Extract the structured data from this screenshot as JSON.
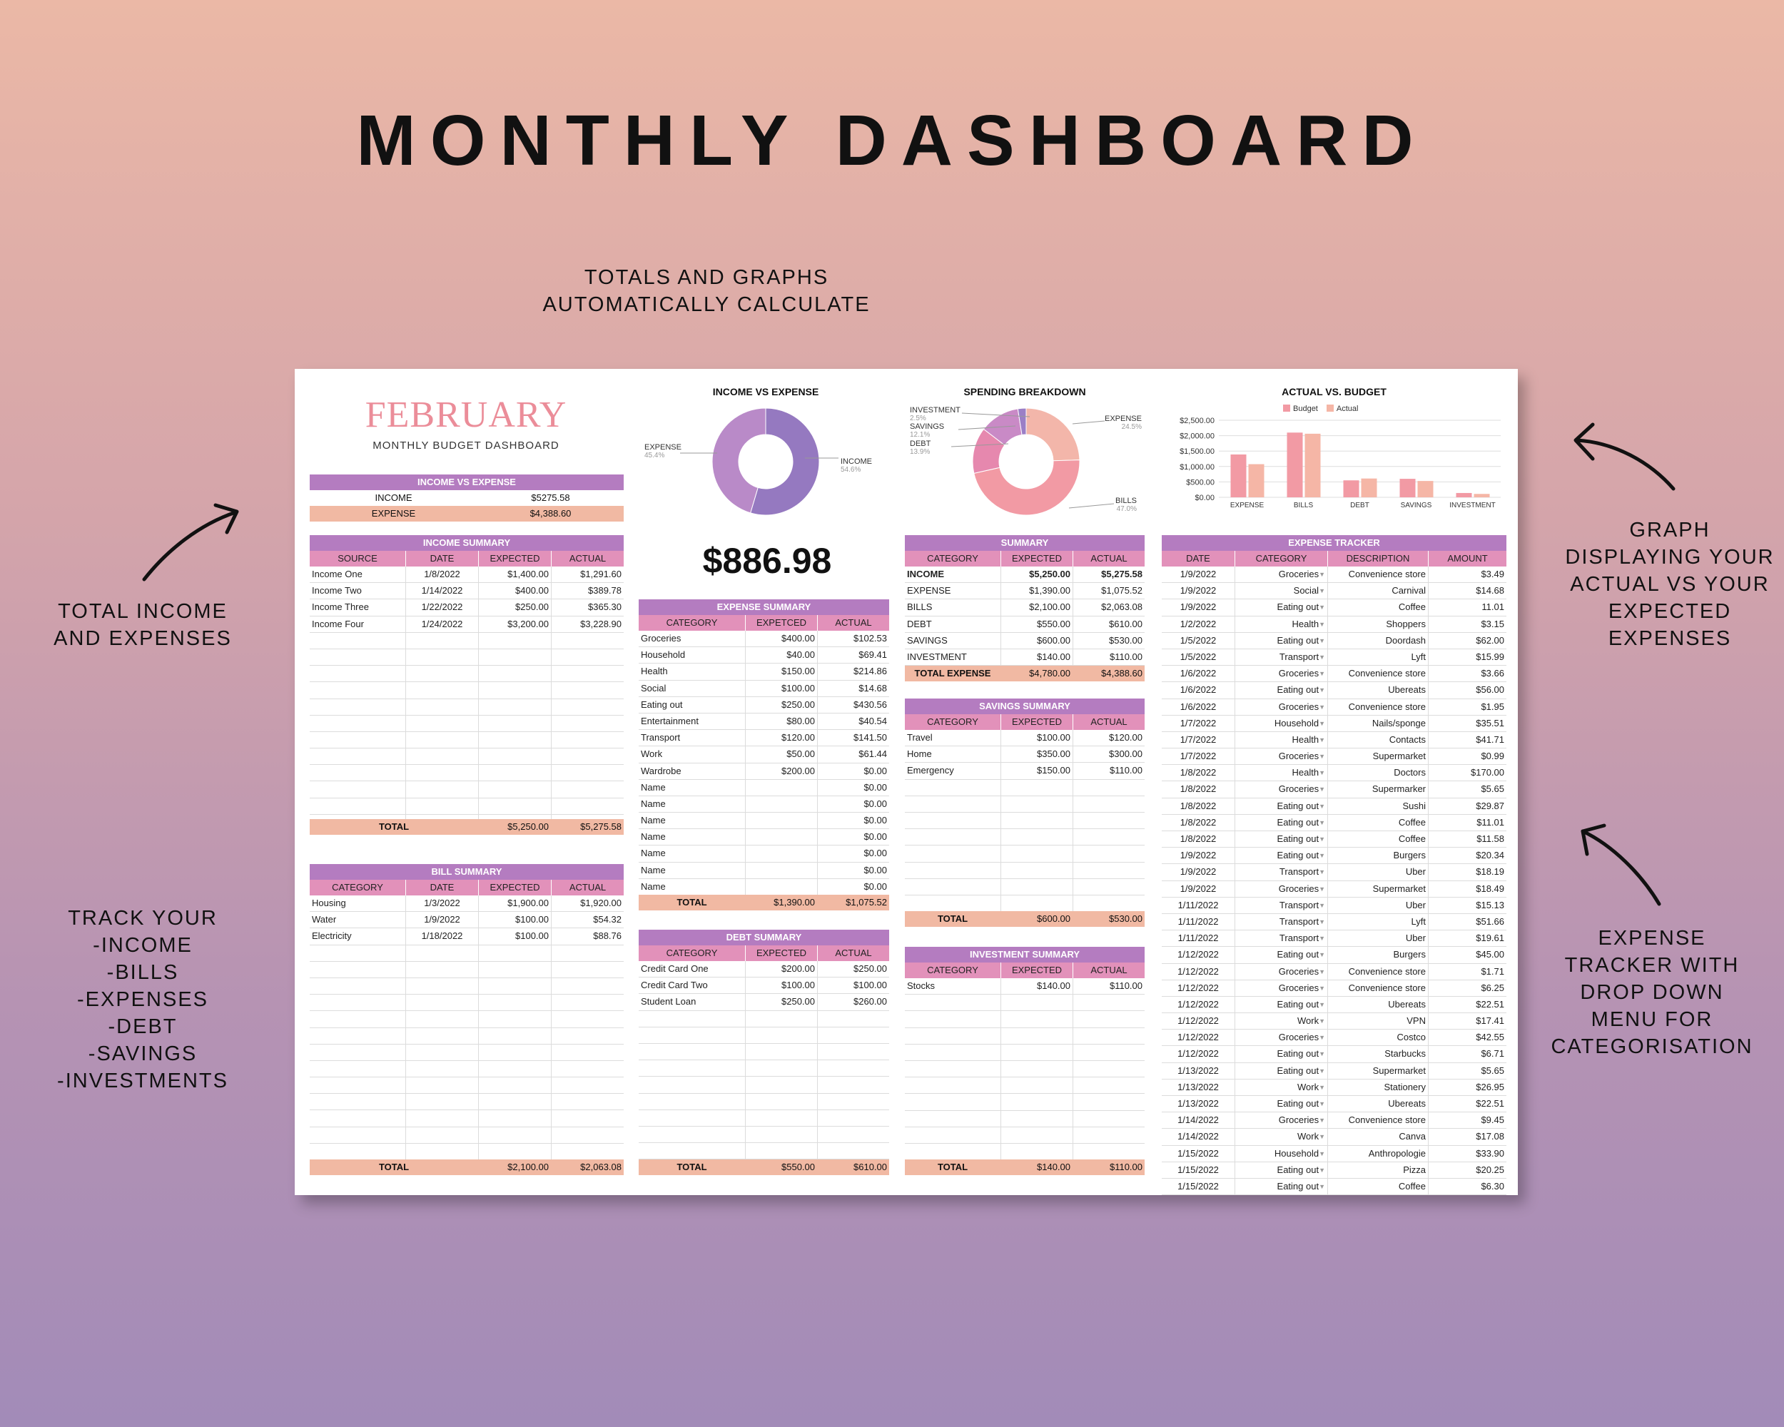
{
  "page": {
    "title": "MONTHLY DASHBOARD",
    "tagline": [
      "TOTALS AND GRAPHS",
      "AUTOMATICALLY CALCULATE"
    ],
    "left_callout_1": [
      "TOTAL INCOME",
      "AND EXPENSES"
    ],
    "left_callout_2": [
      "TRACK YOUR",
      "-INCOME",
      "-BILLS",
      "-EXPENSES",
      "-DEBT",
      "-SAVINGS",
      "-INVESTMENTS"
    ],
    "right_callout_1": [
      "GRAPH",
      "DISPLAYING YOUR",
      "ACTUAL VS YOUR",
      "EXPECTED",
      "EXPENSES"
    ],
    "right_callout_2": [
      "EXPENSE",
      "TRACKER WITH",
      "DROP DOWN",
      "MENU FOR",
      "CATEGORISATION"
    ]
  },
  "colors": {
    "header": "#b47cc0",
    "colheader": "#e291ba",
    "total": "#f1b9a3",
    "month": "#eb8d99"
  },
  "sheet": {
    "month": "FEBRUARY",
    "subtitle": "MONTHLY BUDGET DASHBOARD",
    "income_vs_expense": {
      "title": "INCOME VS EXPENSE",
      "rows": [
        {
          "label": "INCOME",
          "value": "$5275.58"
        },
        {
          "label": "EXPENSE",
          "value": "$4,388.60"
        }
      ]
    },
    "balance": "$886.98",
    "charts": {
      "income_expense_title": "INCOME VS EXPENSE",
      "income_expense_labels": {
        "expense": "EXPENSE",
        "expense_pct": "45.4%",
        "income": "INCOME",
        "income_pct": "54.6%"
      },
      "spending_title": "SPENDING BREAKDOWN",
      "spending_labels": {
        "investment": "INVESTMENT",
        "investment_pct": "2.5%",
        "savings": "SAVINGS",
        "savings_pct": "12.1%",
        "debt": "DEBT",
        "debt_pct": "13.9%",
        "expense": "EXPENSE",
        "expense_pct": "24.5%",
        "bills": "BILLS",
        "bills_pct": "47.0%"
      },
      "budget_title": "ACTUAL VS. BUDGET",
      "legend_budget": "Budget",
      "legend_actual": "Actual",
      "y_ticks": [
        "$2,500.00",
        "$2,000.00",
        "$1,500.00",
        "$1,000.00",
        "$500.00",
        "$0.00"
      ]
    },
    "income_summary": {
      "title": "INCOME SUMMARY",
      "columns": [
        "SOURCE",
        "DATE",
        "EXPECTED",
        "ACTUAL"
      ],
      "rows": [
        [
          "Income One",
          "1/8/2022",
          "$1,400.00",
          "$1,291.60"
        ],
        [
          "Income Two",
          "1/14/2022",
          "$400.00",
          "$389.78"
        ],
        [
          "Income Three",
          "1/22/2022",
          "$250.00",
          "$365.30"
        ],
        [
          "Income Four",
          "1/24/2022",
          "$3,200.00",
          "$3,228.90"
        ]
      ],
      "total": {
        "label": "TOTAL",
        "expected": "$5,250.00",
        "actual": "$5,275.58"
      }
    },
    "bill_summary": {
      "title": "BILL SUMMARY",
      "columns": [
        "CATEGORY",
        "DATE",
        "EXPECTED",
        "ACTUAL"
      ],
      "rows": [
        [
          "Housing",
          "1/3/2022",
          "$1,900.00",
          "$1,920.00"
        ],
        [
          "Water",
          "1/9/2022",
          "$100.00",
          "$54.32"
        ],
        [
          "Electricity",
          "1/18/2022",
          "$100.00",
          "$88.76"
        ]
      ],
      "total": {
        "label": "TOTAL",
        "expected": "$2,100.00",
        "actual": "$2,063.08"
      }
    },
    "expense_summary": {
      "title": "EXPENSE SUMMARY",
      "columns": [
        "CATEGORY",
        "EXPETCED",
        "ACTUAL"
      ],
      "rows": [
        [
          "Groceries",
          "$400.00",
          "$102.53"
        ],
        [
          "Household",
          "$40.00",
          "$69.41"
        ],
        [
          "Health",
          "$150.00",
          "$214.86"
        ],
        [
          "Social",
          "$100.00",
          "$14.68"
        ],
        [
          "Eating out",
          "$250.00",
          "$430.56"
        ],
        [
          "Entertainment",
          "$80.00",
          "$40.54"
        ],
        [
          "Transport",
          "$120.00",
          "$141.50"
        ],
        [
          "Work",
          "$50.00",
          "$61.44"
        ],
        [
          "Wardrobe",
          "$200.00",
          "$0.00"
        ],
        [
          "Name",
          "",
          "$0.00"
        ],
        [
          "Name",
          "",
          "$0.00"
        ],
        [
          "Name",
          "",
          "$0.00"
        ],
        [
          "Name",
          "",
          "$0.00"
        ],
        [
          "Name",
          "",
          "$0.00"
        ],
        [
          "Name",
          "",
          "$0.00"
        ],
        [
          "Name",
          "",
          "$0.00"
        ]
      ],
      "total": {
        "label": "TOTAL",
        "expected": "$1,390.00",
        "actual": "$1,075.52"
      }
    },
    "debt_summary": {
      "title": "DEBT SUMMARY",
      "columns": [
        "CATEGORY",
        "EXPECTED",
        "ACTUAL"
      ],
      "rows": [
        [
          "Credit Card One",
          "$200.00",
          "$250.00"
        ],
        [
          "Credit Card Two",
          "$100.00",
          "$100.00"
        ],
        [
          "Student Loan",
          "$250.00",
          "$260.00"
        ]
      ],
      "total": {
        "label": "TOTAL",
        "expected": "$550.00",
        "actual": "$610.00"
      }
    },
    "summary": {
      "title": "SUMMARY",
      "columns": [
        "CATEGORY",
        "EXPECTED",
        "ACTUAL"
      ],
      "rows": [
        [
          "INCOME",
          "$5,250.00",
          "$5,275.58"
        ],
        [
          "EXPENSE",
          "$1,390.00",
          "$1,075.52"
        ],
        [
          "BILLS",
          "$2,100.00",
          "$2,063.08"
        ],
        [
          "DEBT",
          "$550.00",
          "$610.00"
        ],
        [
          "SAVINGS",
          "$600.00",
          "$530.00"
        ],
        [
          "INVESTMENT",
          "$140.00",
          "$110.00"
        ]
      ],
      "total": {
        "label": "TOTAL EXPENSE",
        "expected": "$4,780.00",
        "actual": "$4,388.60"
      }
    },
    "savings_summary": {
      "title": "SAVINGS SUMMARY",
      "columns": [
        "CATEGORY",
        "EXPECTED",
        "ACTUAL"
      ],
      "rows": [
        [
          "Travel",
          "$100.00",
          "$120.00"
        ],
        [
          "Home",
          "$350.00",
          "$300.00"
        ],
        [
          "Emergency",
          "$150.00",
          "$110.00"
        ]
      ],
      "total": {
        "label": "TOTAL",
        "expected": "$600.00",
        "actual": "$530.00"
      }
    },
    "investment_summary": {
      "title": "INVESTMENT SUMMARY",
      "columns": [
        "CATEGORY",
        "EXPECTED",
        "ACTUAL"
      ],
      "rows": [
        [
          "Stocks",
          "$140.00",
          "$110.00"
        ]
      ],
      "total": {
        "label": "TOTAL",
        "expected": "$140.00",
        "actual": "$110.00"
      }
    },
    "expense_tracker": {
      "title": "EXPENSE TRACKER",
      "columns": [
        "DATE",
        "CATEGORY",
        "DESCRIPTION",
        "AMOUNT"
      ],
      "rows": [
        [
          "1/9/2022",
          "Groceries",
          "Convenience store",
          "$3.49"
        ],
        [
          "1/9/2022",
          "Social",
          "Carnival",
          "$14.68"
        ],
        [
          "1/9/2022",
          "Eating out",
          "Coffee",
          "11.01"
        ],
        [
          "1/2/2022",
          "Health",
          "Shoppers",
          "$3.15"
        ],
        [
          "1/5/2022",
          "Eating out",
          "Doordash",
          "$62.00"
        ],
        [
          "1/5/2022",
          "Transport",
          "Lyft",
          "$15.99"
        ],
        [
          "1/6/2022",
          "Groceries",
          "Convenience store",
          "$3.66"
        ],
        [
          "1/6/2022",
          "Eating out",
          "Ubereats",
          "$56.00"
        ],
        [
          "1/6/2022",
          "Groceries",
          "Convenience store",
          "$1.95"
        ],
        [
          "1/7/2022",
          "Household",
          "Nails/sponge",
          "$35.51"
        ],
        [
          "1/7/2022",
          "Health",
          "Contacts",
          "$41.71"
        ],
        [
          "1/7/2022",
          "Groceries",
          "Supermarket",
          "$0.99"
        ],
        [
          "1/8/2022",
          "Health",
          "Doctors",
          "$170.00"
        ],
        [
          "1/8/2022",
          "Groceries",
          "Supermarker",
          "$5.65"
        ],
        [
          "1/8/2022",
          "Eating out",
          "Sushi",
          "$29.87"
        ],
        [
          "1/8/2022",
          "Eating out",
          "Coffee",
          "$11.01"
        ],
        [
          "1/8/2022",
          "Eating out",
          "Coffee",
          "$11.58"
        ],
        [
          "1/9/2022",
          "Eating out",
          "Burgers",
          "$20.34"
        ],
        [
          "1/9/2022",
          "Transport",
          "Uber",
          "$18.19"
        ],
        [
          "1/9/2022",
          "Groceries",
          "Supermarket",
          "$18.49"
        ],
        [
          "1/11/2022",
          "Transport",
          "Uber",
          "$15.13"
        ],
        [
          "1/11/2022",
          "Transport",
          "Lyft",
          "$51.66"
        ],
        [
          "1/11/2022",
          "Transport",
          "Uber",
          "$19.61"
        ],
        [
          "1/12/2022",
          "Eating out",
          "Burgers",
          "$45.00"
        ],
        [
          "1/12/2022",
          "Groceries",
          "Convenience store",
          "$1.71"
        ],
        [
          "1/12/2022",
          "Groceries",
          "Convenience store",
          "$6.25"
        ],
        [
          "1/12/2022",
          "Eating out",
          "Ubereats",
          "$22.51"
        ],
        [
          "1/12/2022",
          "Work",
          "VPN",
          "$17.41"
        ],
        [
          "1/12/2022",
          "Groceries",
          "Costco",
          "$42.55"
        ],
        [
          "1/12/2022",
          "Eating out",
          "Starbucks",
          "$6.71"
        ],
        [
          "1/13/2022",
          "Eating out",
          "Supermarket",
          "$5.65"
        ],
        [
          "1/13/2022",
          "Work",
          "Stationery",
          "$26.95"
        ],
        [
          "1/13/2022",
          "Eating out",
          "Ubereats",
          "$22.51"
        ],
        [
          "1/14/2022",
          "Groceries",
          "Convenience store",
          "$9.45"
        ],
        [
          "1/14/2022",
          "Work",
          "Canva",
          "$17.08"
        ],
        [
          "1/15/2022",
          "Household",
          "Anthropologie",
          "$33.90"
        ],
        [
          "1/15/2022",
          "Eating out",
          "Pizza",
          "$20.25"
        ],
        [
          "1/15/2022",
          "Eating out",
          "Coffee",
          "$6.30"
        ]
      ]
    }
  },
  "chart_data": [
    {
      "type": "pie",
      "title": "INCOME VS EXPENSE",
      "categories": [
        "INCOME",
        "EXPENSE"
      ],
      "values": [
        54.6,
        45.4
      ],
      "colors": [
        "#9579c0",
        "#b98ac8"
      ]
    },
    {
      "type": "pie",
      "title": "SPENDING BREAKDOWN",
      "categories": [
        "EXPENSE",
        "BILLS",
        "DEBT",
        "SAVINGS",
        "INVESTMENT"
      ],
      "values": [
        24.5,
        47.0,
        13.9,
        12.1,
        2.5
      ],
      "colors": [
        "#f3b6aa",
        "#f29aa4",
        "#e688ae",
        "#c98ac6",
        "#9b7fc6"
      ]
    },
    {
      "type": "bar",
      "title": "ACTUAL VS. BUDGET",
      "categories": [
        "EXPENSE",
        "BILLS",
        "DEBT",
        "SAVINGS",
        "INVESTMENT"
      ],
      "series": [
        {
          "name": "Budget",
          "values": [
            1390,
            2100,
            550,
            600,
            140
          ],
          "color": "#f29aa4"
        },
        {
          "name": "Actual",
          "values": [
            1075.52,
            2063.08,
            610,
            530,
            110
          ],
          "color": "#f5b6a6"
        }
      ],
      "ylim": [
        0,
        2500
      ],
      "grid": true,
      "legend": "top"
    }
  ]
}
